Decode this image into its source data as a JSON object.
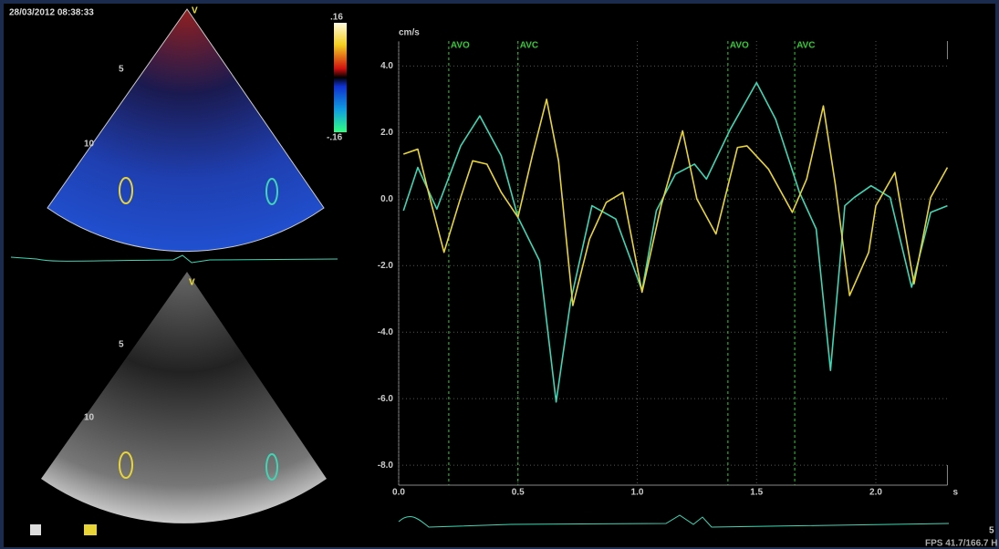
{
  "header": {
    "timestamp": "28/03/2012 08:38:33",
    "fps": "FPS 41.7/166.7 H"
  },
  "images": {
    "color_scale_max": ".16",
    "color_scale_min": "-.16",
    "probe_mark": "V",
    "depth_5": "5",
    "depth_10": "10",
    "side_number": "5"
  },
  "chart_data": {
    "type": "line",
    "y_label": "cm/s",
    "x_label": "s",
    "xlim": [
      0,
      2.3
    ],
    "ylim": [
      -8.6,
      4.75
    ],
    "xticks": [
      {
        "value": 0,
        "label": "0.0"
      },
      {
        "value": 0.5,
        "label": "0.5"
      },
      {
        "value": 1,
        "label": "1.0"
      },
      {
        "value": 1.5,
        "label": "1.5"
      },
      {
        "value": 2,
        "label": "2.0"
      }
    ],
    "yticks": [
      {
        "value": 4,
        "label": "4.0"
      },
      {
        "value": 2,
        "label": "2.0"
      },
      {
        "value": 0,
        "label": "0.0"
      },
      {
        "value": -2,
        "label": "-2.0"
      },
      {
        "value": -4,
        "label": "-4.0"
      },
      {
        "value": -6,
        "label": "-6.0"
      },
      {
        "value": -8,
        "label": "-8.0"
      }
    ],
    "grid": true,
    "events": [
      {
        "label": "AVO",
        "x": 0.21
      },
      {
        "label": "AVC",
        "x": 0.5
      },
      {
        "label": "AVO",
        "x": 1.38
      },
      {
        "label": "AVC",
        "x": 1.66
      }
    ],
    "series": [
      {
        "color": "#3fd6b4",
        "x": [
          0.02,
          0.08,
          0.16,
          0.26,
          0.34,
          0.43,
          0.5,
          0.59,
          0.66,
          0.72,
          0.81,
          0.91,
          1.02,
          1.08,
          1.16,
          1.24,
          1.29,
          1.39,
          1.5,
          1.58,
          1.68,
          1.75,
          1.81,
          1.87,
          1.91,
          1.98,
          2.06,
          2.15,
          2.23,
          2.3
        ],
        "values": [
          -0.35,
          0.95,
          -0.3,
          1.6,
          2.5,
          1.3,
          -0.55,
          -1.85,
          -6.1,
          -3.1,
          -0.2,
          -0.6,
          -2.75,
          -0.35,
          0.75,
          1.05,
          0.6,
          2.1,
          3.5,
          2.4,
          0.2,
          -0.9,
          -5.15,
          -0.2,
          0.05,
          0.4,
          0.05,
          -2.65,
          -0.4,
          -0.2
        ]
      },
      {
        "color": "#e8d437",
        "x": [
          0.02,
          0.08,
          0.13,
          0.19,
          0.26,
          0.31,
          0.37,
          0.43,
          0.5,
          0.56,
          0.62,
          0.67,
          0.73,
          0.8,
          0.87,
          0.94,
          1.02,
          1.1,
          1.19,
          1.25,
          1.33,
          1.42,
          1.46,
          1.55,
          1.65,
          1.71,
          1.78,
          1.83,
          1.89,
          1.97,
          2.0,
          2.08,
          2.16,
          2.23,
          2.3
        ],
        "values": [
          1.35,
          1.5,
          0.05,
          -1.6,
          0.05,
          1.15,
          1.05,
          0.2,
          -0.55,
          1.3,
          3.0,
          1.15,
          -3.2,
          -1.2,
          -0.1,
          0.2,
          -2.8,
          -0.2,
          2.05,
          0,
          -1.05,
          1.55,
          1.6,
          0.9,
          -0.4,
          0.6,
          2.8,
          0.45,
          -2.9,
          -1.6,
          -0.2,
          0.8,
          -2.55,
          0.05,
          0.95
        ]
      }
    ]
  }
}
